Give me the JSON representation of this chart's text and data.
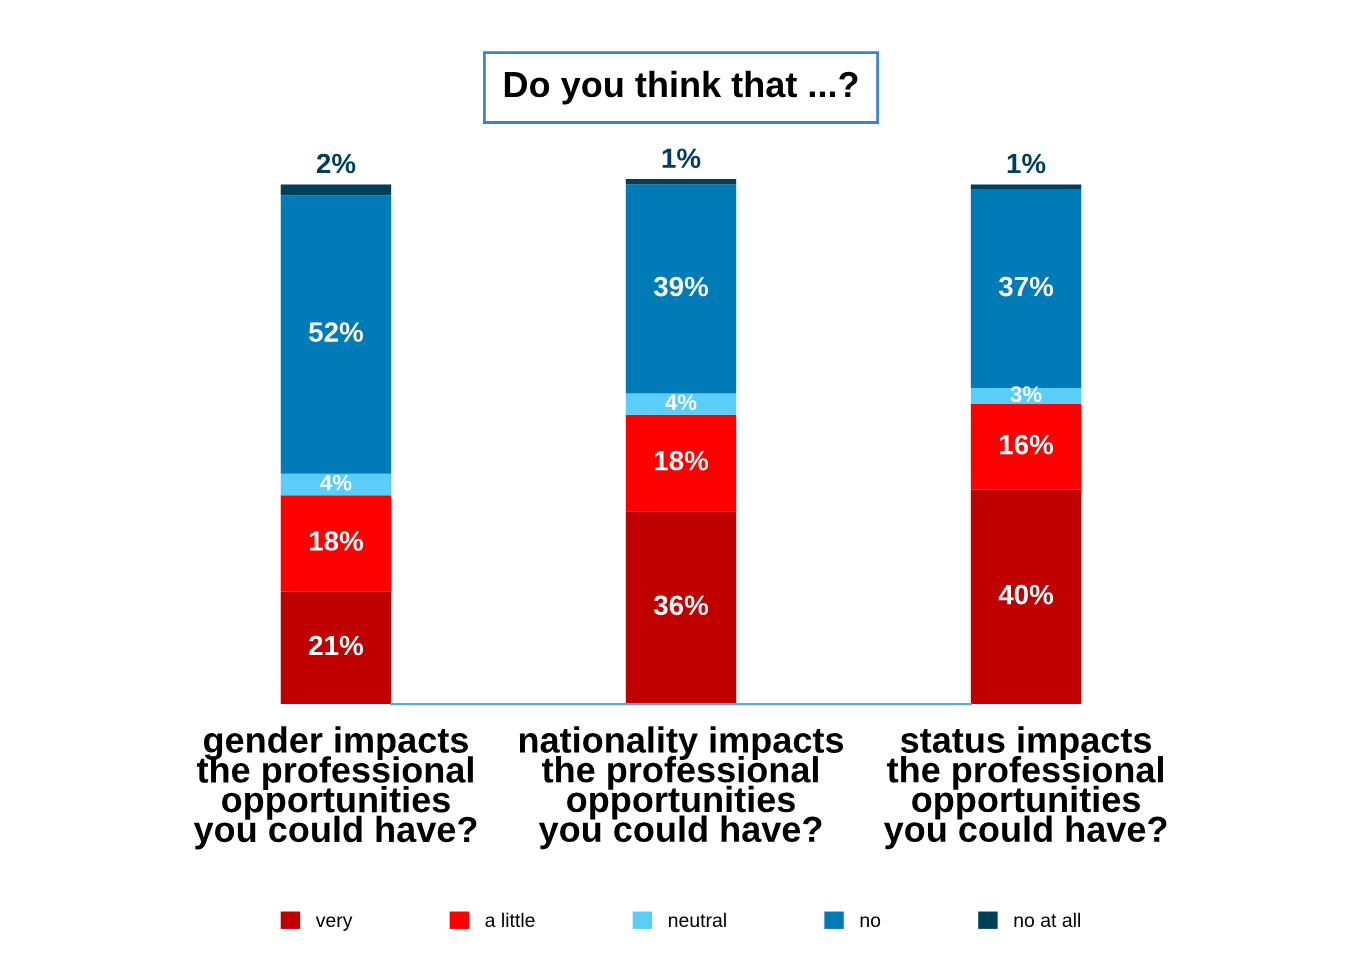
{
  "chart_data": {
    "type": "bar",
    "title": "Do you think that ...?",
    "categories": [
      "gender impacts\nthe professional\nopportunities\nyou could have?",
      "nationality impacts\nthe professional\nopportunities\nyou could have?",
      "status impacts\nthe professional\nopportunities\nyou could have?"
    ],
    "stacked": true,
    "legend": "bottom",
    "grid": false,
    "series": [
      {
        "name": "very",
        "color": "#c00000",
        "values": [
          21,
          36,
          40
        ],
        "value_labels": [
          "21%",
          "36%",
          "40%"
        ]
      },
      {
        "name": "a little",
        "color": "#ff0000",
        "values": [
          18,
          18,
          16
        ],
        "value_labels": [
          "18%",
          "18%",
          "16%"
        ]
      },
      {
        "name": "neutral",
        "color": "#5bcdfb",
        "values": [
          4,
          4,
          3
        ],
        "value_labels": [
          "4%",
          "4%",
          "3%"
        ]
      },
      {
        "name": "no",
        "color": "#007bb8",
        "values": [
          52,
          39,
          37
        ],
        "value_labels": [
          "52%",
          "39%",
          "37%"
        ]
      },
      {
        "name": "no at all",
        "color": "#003f5a",
        "values": [
          2,
          1,
          1
        ],
        "value_labels": [
          "2%",
          "1%",
          "1%"
        ]
      }
    ]
  }
}
